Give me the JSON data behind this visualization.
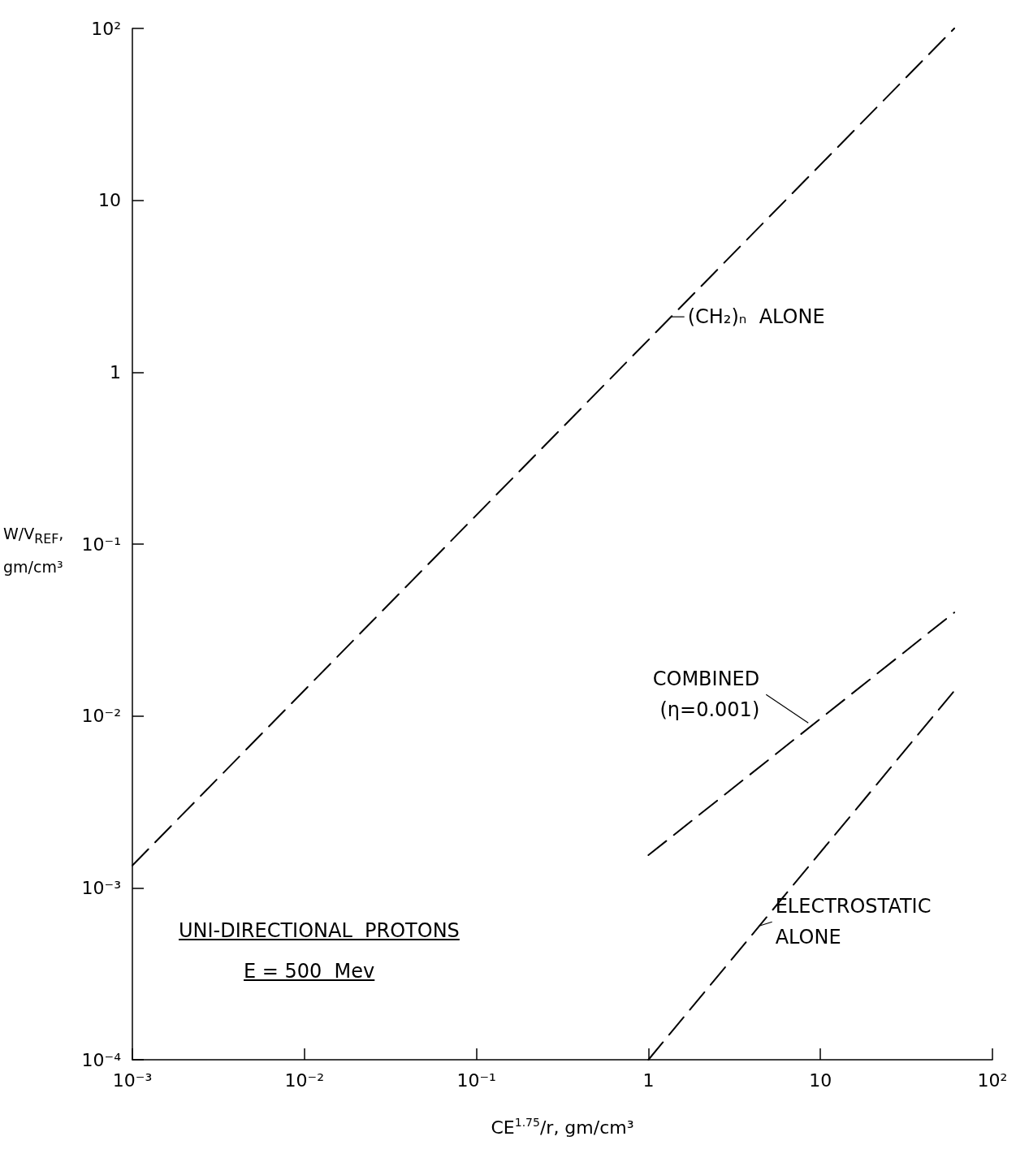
{
  "chart_data": {
    "type": "line",
    "xlabel": "CE$^{1.75}$/r, gm/cm³",
    "ylabel": "W/V$_{REF}$, gm/cm³",
    "log": "xy",
    "grid": false,
    "marker": "none",
    "xlim": [
      0.001,
      100
    ],
    "xticks": [
      {
        "value": 0.001,
        "label": "10⁻³"
      },
      {
        "value": 0.01,
        "label": "10⁻²"
      },
      {
        "value": 0.1,
        "label": "10⁻¹"
      },
      1,
      10,
      {
        "value": 100,
        "label": "10²"
      }
    ],
    "ylim": [
      0.0001,
      100
    ],
    "yticks": [
      {
        "value": 0.0001,
        "label": "10⁻⁴"
      },
      {
        "value": 0.001,
        "label": "10⁻³"
      },
      {
        "value": 0.01,
        "label": "10⁻²"
      },
      {
        "value": 0.1,
        "label": "10⁻¹"
      },
      1,
      10,
      {
        "value": 100,
        "label": "10²"
      }
    ],
    "series": [
      {
        "x": [
          0.001,
          60
        ],
        "values": [
          0.00135,
          100
        ],
        "color": "#000000",
        "line_style": "dashed"
      },
      {
        "x": [
          1,
          60
        ],
        "values": [
          0.00155,
          0.04
        ],
        "color": "#000000",
        "line_style": "dashed"
      },
      {
        "x": [
          1,
          60
        ],
        "values": [
          0.0001,
          0.014
        ],
        "color": "#000000",
        "line_style": "dashed"
      }
    ],
    "annotations": [
      {
        "text": "(CH₂)ₙ  ALONE",
        "x": 1.36,
        "y": 2.1
      },
      {
        "text": "COMBINED\n(η=0.001)",
        "x": 8.5,
        "y": 0.0091
      },
      {
        "text": "ELECTROSTATIC\nALONE",
        "x": 4.4,
        "y": 0.0006
      },
      "UNI-DIRECTIONAL  PROTONS",
      "E = 500  Mev"
    ]
  }
}
